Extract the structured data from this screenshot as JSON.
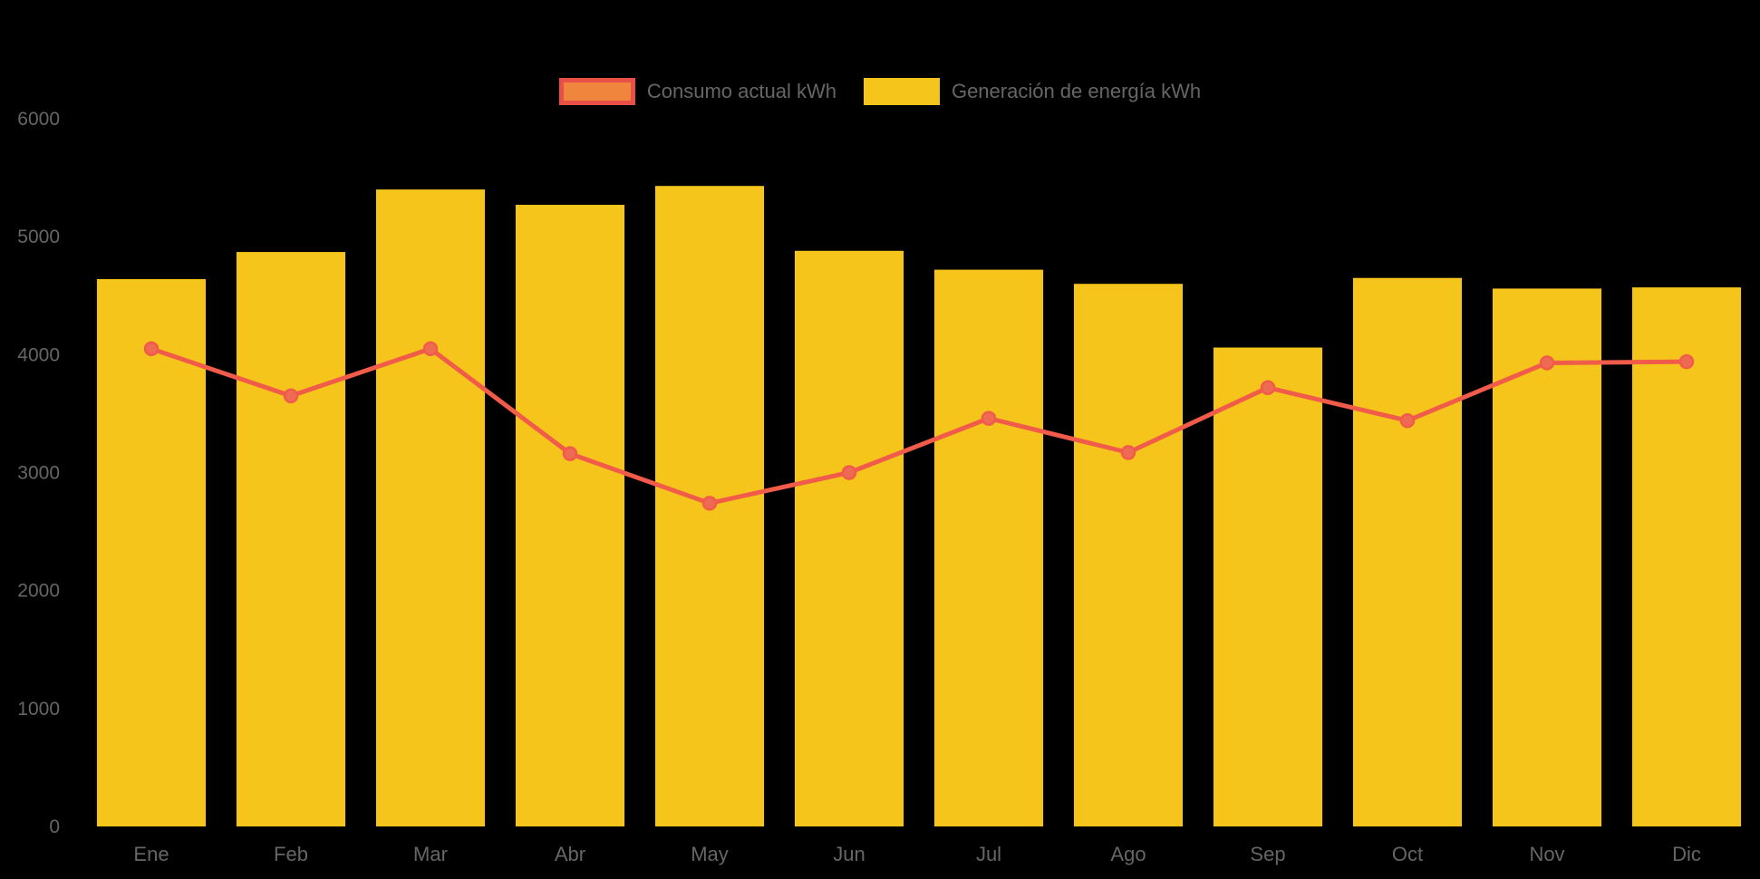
{
  "legend": {
    "items": [
      {
        "label": "Consumo actual kWh",
        "fill": "#f0863e",
        "border": "#e94f47"
      },
      {
        "label": "Generación de energía kWh",
        "fill": "#f5c51b",
        "border": "#f5c51b"
      }
    ]
  },
  "chart_data": {
    "type": "bar",
    "title": "",
    "categories": [
      "Ene",
      "Feb",
      "Mar",
      "Abr",
      "May",
      "Jun",
      "Jul",
      "Ago",
      "Sep",
      "Oct",
      "Nov",
      "Dic"
    ],
    "series": [
      {
        "name": "Consumo actual kWh",
        "type": "line",
        "color": "#f15b4a",
        "point_fill": "#ee6a52",
        "values": [
          4050,
          3650,
          4050,
          3160,
          2740,
          3000,
          3460,
          3170,
          3720,
          3440,
          3930,
          3940
        ]
      },
      {
        "name": "Generación de energía kWh",
        "type": "bar",
        "color": "#f5c51b",
        "values": [
          4640,
          4870,
          5400,
          5270,
          5430,
          4880,
          4720,
          4600,
          4060,
          4650,
          4560,
          4570
        ]
      }
    ],
    "xlabel": "",
    "ylabel": "",
    "ylim": [
      0,
      6000
    ],
    "yticks": [
      0,
      1000,
      2000,
      3000,
      4000,
      5000,
      6000
    ],
    "grid": false,
    "legend_position": "top",
    "background": "#000000",
    "text_color": "#666666"
  }
}
